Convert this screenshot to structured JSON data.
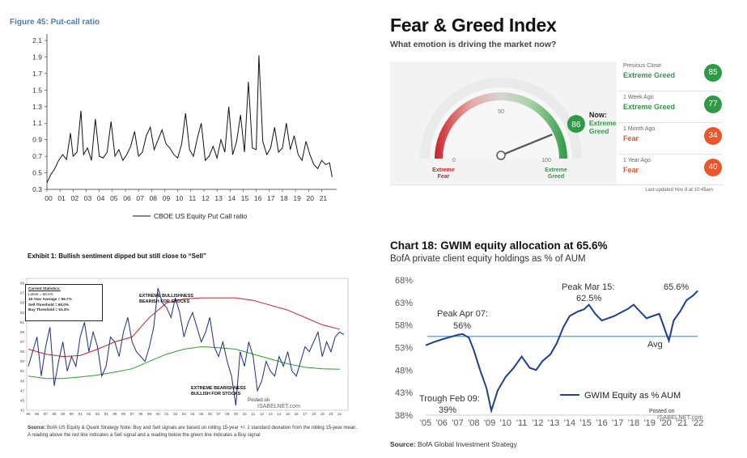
{
  "panel1": {
    "title": "Figure 45: Put-call ratio",
    "legend": "CBOE US Equity Put Call ratio",
    "line_color": "#111111"
  },
  "panel2": {
    "title": "Fear & Greed Index",
    "subtitle": "What emotion is driving the market now?",
    "gauge": {
      "value": 86,
      "label_0": "0",
      "label_50": "50",
      "label_100": "100",
      "left_label_1": "Extreme",
      "left_label_2": "Fear",
      "right_label_1": "Extreme",
      "right_label_2": "Greed",
      "now_label": "Now:",
      "now_state_1": "Extreme",
      "now_state_2": "Greed"
    },
    "history": [
      {
        "label": "Previous Close",
        "state": "Extreme Greed",
        "value": "85",
        "color": "#2f9a45"
      },
      {
        "label": "1 Week Ago",
        "state": "Extreme Greed",
        "value": "77",
        "color": "#2f9a45"
      },
      {
        "label": "1 Month Ago",
        "state": "Fear",
        "value": "34",
        "color": "#e8562a"
      },
      {
        "label": "1 Year Ago",
        "state": "Fear",
        "value": "40",
        "color": "#e8562a"
      }
    ],
    "updated": "Last updated Nov 8 at 10:45am"
  },
  "panel3": {
    "title": "Exhibit 1: Bullish sentiment dipped but still close to “Sell”",
    "stats": {
      "heading": "Current Statistics:",
      "latest": "Latest = 58.5%",
      "average": "15-Year Average = 55.7%",
      "sell": "Sell Threshold = 60.0%",
      "buy": "Buy Threshold = 51.4%"
    },
    "annot_bull_1": "EXTREME BULLISHNESS",
    "annot_bull_2": "BEARISH FOR STOCKS",
    "annot_bear_1": "EXTREME BEARISHNESS",
    "annot_bear_2": "BULLISH FOR STOCKS",
    "posted_1": "Posted on",
    "posted_2": "ISABELNET.com",
    "source_bold": "Source:",
    "source_text": " BofA US Equity & Quant Strategy Note: Buy and Sell signals are based on rolling 15-year +/- 1 standard deviation from the rolling 15-year mean. A reading above the red line indicates a Sell signal and a reading below the green line indicates a Buy signal"
  },
  "panel4": {
    "title": "Chart 18: GWIM equity allocation at 65.6%",
    "subtitle": "BofA private client equity holdings as % of AUM",
    "annot_peak07_1": "Peak Apr 07:",
    "annot_peak07_2": "56%",
    "annot_peak15_1": "Peak Mar 15:",
    "annot_peak15_2": "62.5%",
    "annot_last": "65.6%",
    "annot_trough_1": "Trough Feb 09:",
    "annot_trough_2": "39%",
    "annot_avg": "Avg",
    "legend": "GWIM Equity as % AUM",
    "posted_1": "Posted on",
    "posted_2": "ISABELNET.com",
    "source_bold": "Source:",
    "source_text": " BofA Global Investment Strategy",
    "line_color": "#1f3f8f",
    "avg_color": "#5aaee0"
  },
  "chart_data": [
    {
      "type": "line",
      "title": "Figure 45: Put-call ratio",
      "xlabel": "",
      "ylabel": "",
      "xlim": [
        2000,
        2021.9
      ],
      "ylim": [
        0.3,
        2.1
      ],
      "yticks": [
        "0.3",
        "0.5",
        "0.7",
        "0.9",
        "1.1",
        "1.3",
        "1.5",
        "1.7",
        "1.9",
        "2.1"
      ],
      "xticks": [
        "00",
        "01",
        "02",
        "03",
        "04",
        "05",
        "06",
        "07",
        "08",
        "09",
        "10",
        "11",
        "12",
        "13",
        "14",
        "15",
        "16",
        "17",
        "18",
        "19",
        "20",
        "21"
      ],
      "legend": "top? no — bottom-center",
      "series": [
        {
          "name": "CBOE US Equity Put Call ratio",
          "x": [
            2000.0,
            2000.3,
            2000.6,
            2000.9,
            2001.2,
            2001.5,
            2001.8,
            2002.0,
            2002.3,
            2002.6,
            2002.8,
            2003.1,
            2003.4,
            2003.7,
            2004.0,
            2004.3,
            2004.6,
            2004.9,
            2005.2,
            2005.5,
            2005.8,
            2006.1,
            2006.4,
            2006.7,
            2007.0,
            2007.3,
            2007.6,
            2007.9,
            2008.2,
            2008.5,
            2008.8,
            2009.1,
            2009.4,
            2009.7,
            2010.0,
            2010.3,
            2010.6,
            2010.9,
            2011.2,
            2011.5,
            2011.8,
            2012.1,
            2012.4,
            2012.7,
            2013.0,
            2013.3,
            2013.6,
            2013.9,
            2014.2,
            2014.5,
            2014.8,
            2015.1,
            2015.4,
            2015.7,
            2016.0,
            2016.2,
            2016.5,
            2016.8,
            2017.1,
            2017.4,
            2017.7,
            2018.0,
            2018.3,
            2018.6,
            2018.9,
            2019.2,
            2019.5,
            2019.8,
            2020.1,
            2020.4,
            2020.7,
            2021.0,
            2021.3,
            2021.6,
            2021.8
          ],
          "y": [
            0.38,
            0.48,
            0.55,
            0.65,
            0.72,
            0.66,
            0.98,
            0.7,
            0.75,
            1.25,
            0.72,
            0.8,
            0.65,
            1.15,
            0.7,
            0.68,
            0.75,
            1.12,
            0.7,
            0.78,
            0.65,
            0.72,
            0.82,
            1.0,
            0.7,
            0.75,
            0.95,
            1.05,
            0.78,
            0.9,
            1.02,
            0.85,
            0.8,
            0.72,
            0.68,
            0.85,
            1.22,
            0.78,
            0.7,
            0.92,
            1.1,
            0.65,
            0.7,
            0.82,
            0.68,
            0.9,
            0.75,
            1.3,
            0.72,
            0.88,
            1.2,
            0.75,
            1.6,
            0.8,
            0.78,
            1.92,
            0.88,
            0.72,
            0.8,
            1.05,
            0.75,
            0.8,
            1.1,
            0.78,
            0.95,
            0.72,
            0.65,
            0.88,
            0.72,
            0.6,
            0.55,
            0.65,
            0.6,
            0.62,
            0.45
          ]
        }
      ]
    },
    {
      "type": "gauge",
      "title": "Fear & Greed Index",
      "range": [
        0,
        100
      ],
      "value": 86,
      "ticks": [
        "0",
        "50",
        "100"
      ]
    },
    {
      "type": "line",
      "title": "Exhibit 1: Bullish sentiment dipped but still close to “Sell”",
      "xlim": [
        1985,
        2021.6
      ],
      "ylim": [
        43,
        70
      ],
      "yticks": [
        "43",
        "45",
        "47",
        "49",
        "51",
        "53",
        "55",
        "57",
        "59",
        "61",
        "63",
        "65",
        "67",
        "69"
      ],
      "xticks": [
        "85",
        "86",
        "87",
        "88",
        "89",
        "90",
        "91",
        "92",
        "93",
        "94",
        "95",
        "96",
        "97",
        "98",
        "99",
        "00",
        "01",
        "02",
        "03",
        "04",
        "05",
        "06",
        "07",
        "08",
        "09",
        "10",
        "11",
        "12",
        "13",
        "14",
        "15",
        "16",
        "17",
        "18",
        "19",
        "20",
        "21"
      ],
      "series": [
        {
          "name": "Sell threshold (red)",
          "x": [
            1985,
            1987,
            1989,
            1991,
            1993,
            1995,
            1997,
            1999,
            2001,
            2003,
            2005,
            2007,
            2009,
            2011,
            2013,
            2015,
            2017,
            2019,
            2021
          ],
          "y": [
            55.5,
            54.5,
            54.0,
            54.2,
            55.5,
            57.0,
            58.0,
            62.0,
            65.0,
            65.8,
            66.0,
            66.0,
            66.0,
            65.5,
            64.5,
            63.5,
            62.0,
            60.5,
            59.6
          ]
        },
        {
          "name": "Buy threshold (green)",
          "x": [
            1985,
            1987,
            1989,
            1991,
            1993,
            1995,
            1997,
            1999,
            2001,
            2003,
            2005,
            2007,
            2009,
            2011,
            2013,
            2015,
            2017,
            2019,
            2021
          ],
          "y": [
            50.0,
            49.5,
            49.5,
            49.8,
            50.2,
            50.8,
            51.5,
            53.0,
            54.5,
            55.5,
            56.0,
            55.8,
            55.5,
            54.5,
            53.5,
            52.5,
            51.8,
            51.5,
            51.4
          ]
        },
        {
          "name": "Bullish sentiment",
          "x": [
            1985,
            1985.5,
            1986,
            1986.5,
            1987,
            1987.5,
            1988,
            1988.5,
            1989,
            1989.5,
            1990,
            1990.5,
            1991,
            1991.5,
            1992,
            1992.5,
            1993,
            1993.5,
            1994,
            1994.5,
            1995,
            1995.5,
            1996,
            1996.5,
            1997,
            1997.5,
            1998,
            1998.5,
            1999,
            1999.5,
            2000,
            2000.5,
            2001,
            2001.5,
            2002,
            2002.5,
            2003,
            2003.5,
            2004,
            2004.5,
            2005,
            2005.5,
            2006,
            2006.5,
            2007,
            2007.5,
            2008,
            2008.5,
            2009,
            2009.5,
            2010,
            2010.5,
            2011,
            2011.5,
            2012,
            2012.5,
            2013,
            2013.5,
            2014,
            2014.5,
            2015,
            2015.5,
            2016,
            2016.5,
            2017,
            2017.5,
            2018,
            2018.5,
            2019,
            2019.5,
            2020,
            2020.5,
            2021,
            2021.5
          ],
          "y": [
            52,
            55,
            58,
            50,
            56,
            60,
            48,
            53,
            57,
            51,
            54,
            52,
            58,
            61,
            55,
            59,
            56,
            50,
            52,
            58,
            57,
            54,
            59,
            62,
            57,
            55,
            54,
            53,
            56,
            60,
            68,
            65,
            64,
            62,
            66,
            63,
            58,
            61,
            63,
            60,
            57,
            59,
            62,
            56,
            54,
            57,
            53,
            50,
            44,
            55,
            52,
            57,
            54,
            47,
            49,
            53,
            51,
            50,
            54,
            52,
            55,
            51,
            50,
            53,
            56,
            55,
            57,
            59,
            54,
            57,
            55,
            58,
            59,
            58.5
          ]
        }
      ]
    },
    {
      "type": "line",
      "title": "Chart 18: GWIM equity allocation at 65.6%",
      "subtitle": "BofA private client equity holdings as % of AUM",
      "xlim": [
        2005,
        2022.3
      ],
      "ylim": [
        38,
        68
      ],
      "yticks": [
        "38%",
        "43%",
        "48%",
        "53%",
        "58%",
        "63%",
        "68%"
      ],
      "xticks": [
        "'05",
        "'06",
        "'07",
        "'08",
        "'09",
        "'10",
        "'11",
        "'12",
        "'13",
        "'14",
        "'15",
        "'16",
        "'17",
        "'18",
        "'19",
        "'20",
        "'21",
        "'22"
      ],
      "series": [
        {
          "name": "GWIM Equity as % AUM",
          "x": [
            2005.0,
            2005.5,
            2006.0,
            2006.5,
            2007.0,
            2007.3,
            2007.7,
            2008.0,
            2008.4,
            2008.8,
            2009.1,
            2009.5,
            2010.0,
            2010.5,
            2011.0,
            2011.5,
            2011.9,
            2012.3,
            2012.8,
            2013.2,
            2013.6,
            2014.0,
            2014.5,
            2014.9,
            2015.2,
            2015.6,
            2016.0,
            2016.4,
            2016.8,
            2017.2,
            2017.6,
            2018.0,
            2018.4,
            2018.8,
            2019.2,
            2019.6,
            2020.0,
            2020.2,
            2020.5,
            2020.9,
            2021.3,
            2021.7,
            2022.0
          ],
          "y": [
            53.5,
            54.2,
            54.8,
            55.3,
            55.8,
            56.0,
            55.2,
            52.5,
            48.0,
            44.0,
            39.0,
            43.5,
            46.5,
            48.5,
            51.0,
            48.5,
            48.0,
            50.0,
            51.5,
            54.0,
            57.5,
            60.0,
            61.0,
            61.5,
            62.5,
            60.5,
            59.0,
            59.5,
            60.0,
            60.8,
            61.5,
            62.5,
            61.0,
            59.5,
            60.0,
            60.5,
            56.5,
            54.5,
            59.0,
            61.0,
            63.5,
            64.5,
            65.6
          ]
        },
        {
          "name": "Avg",
          "x": [
            2005,
            2022.3
          ],
          "y": [
            55.5,
            55.5
          ]
        }
      ]
    }
  ]
}
